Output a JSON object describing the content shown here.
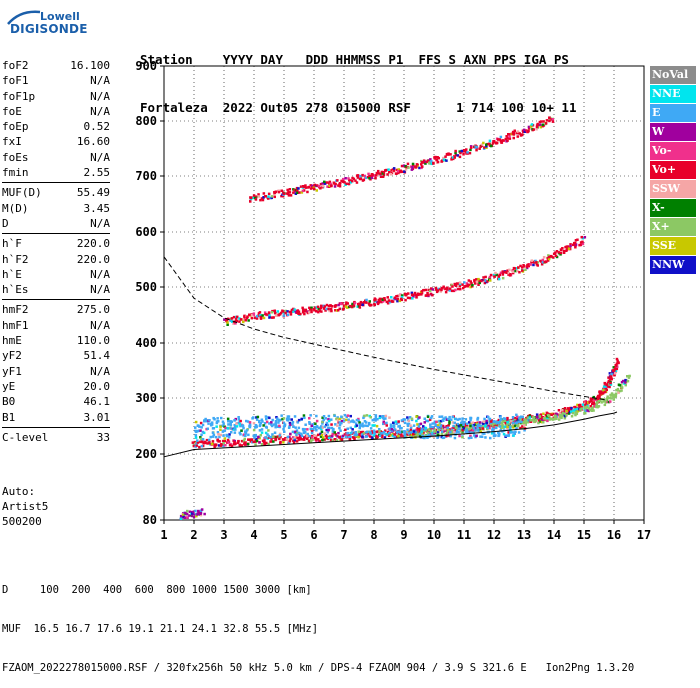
{
  "logo": {
    "line1": "Lowell",
    "line2": "DIGISONDE"
  },
  "header": {
    "line1": "Station    YYYY DAY   DDD HHMMSS P1  FFS S AXN PPS IGA PS",
    "line2": "Fortaleza  2022 Out05 278 015000 RSF      1 714 100 10+ 11"
  },
  "params_groups": [
    [
      {
        "label": "foF2",
        "value": "16.100"
      },
      {
        "label": "foF1",
        "value": "N/A"
      },
      {
        "label": "foF1p",
        "value": "N/A"
      },
      {
        "label": "foE",
        "value": "N/A"
      },
      {
        "label": "foEp",
        "value": "0.52"
      },
      {
        "label": "fxI",
        "value": "16.60"
      },
      {
        "label": "foEs",
        "value": "N/A"
      },
      {
        "label": "fmin",
        "value": "2.55"
      }
    ],
    [
      {
        "label": "MUF(D)",
        "value": "55.49"
      },
      {
        "label": "M(D)",
        "value": "3.45"
      },
      {
        "label": "D",
        "value": "N/A"
      }
    ],
    [
      {
        "label": "h`F",
        "value": "220.0"
      },
      {
        "label": "h`F2",
        "value": "220.0"
      },
      {
        "label": "h`E",
        "value": "N/A"
      },
      {
        "label": "h`Es",
        "value": "N/A"
      }
    ],
    [
      {
        "label": "hmF2",
        "value": "275.0"
      },
      {
        "label": "hmF1",
        "value": "N/A"
      },
      {
        "label": "hmE",
        "value": "110.0"
      },
      {
        "label": "yF2",
        "value": "51.4"
      },
      {
        "label": "yF1",
        "value": "N/A"
      },
      {
        "label": "yE",
        "value": "20.0"
      },
      {
        "label": "B0",
        "value": "46.1"
      },
      {
        "label": "B1",
        "value": "3.01"
      }
    ],
    [
      {
        "label": "C-level",
        "value": "33"
      }
    ]
  ],
  "auto": {
    "line1": "Auto:",
    "line2": "Artist5",
    "line3": "500200"
  },
  "legend": [
    {
      "label": "NoVal",
      "color": "#8c8c8c"
    },
    {
      "label": "NNE",
      "color": "#00e5ee"
    },
    {
      "label": "E",
      "color": "#3fa9f5"
    },
    {
      "label": "W",
      "color": "#a0009e"
    },
    {
      "label": "Vo-",
      "color": "#f0308c"
    },
    {
      "label": "Vo+",
      "color": "#e8002a"
    },
    {
      "label": "SSW",
      "color": "#f5a6a6"
    },
    {
      "label": "X-",
      "color": "#008000"
    },
    {
      "label": "X+",
      "color": "#8cc864"
    },
    {
      "label": "SSE",
      "color": "#c8c800"
    },
    {
      "label": "NNW",
      "color": "#1010c8"
    }
  ],
  "footer": {
    "line1": "D     100  200  400  600  800 1000 1500 3000 [km]",
    "line2": "MUF  16.5 16.7 17.6 19.1 21.1 24.1 32.8 55.5 [MHz]",
    "line3": "FZAOM_2022278015000.RSF / 320fx256h 50 kHz 5.0 km / DPS-4 FZAOM 904 / 3.9 S 321.6 E   Ion2Png 1.3.20"
  },
  "chart_data": {
    "type": "scatter",
    "xlim": [
      1,
      17
    ],
    "ylim": [
      80,
      900
    ],
    "x_ticks": [
      1,
      2,
      3,
      4,
      5,
      6,
      7,
      8,
      9,
      10,
      11,
      12,
      13,
      14,
      15,
      16,
      17
    ],
    "y_ticks": [
      80,
      200,
      300,
      400,
      500,
      600,
      700,
      800,
      900
    ],
    "grid": true,
    "xlabel": "",
    "ylabel": "",
    "traces": [
      {
        "name": "ordinary_1st_hop",
        "color": "#e8002a",
        "x": [
          1.9,
          3,
          4,
          5,
          6,
          7,
          8,
          9,
          10,
          11,
          12,
          13,
          14,
          14.8,
          15.4,
          15.8,
          16.1
        ],
        "y": [
          220,
          222,
          225,
          228,
          230,
          233,
          237,
          240,
          245,
          250,
          257,
          264,
          273,
          285,
          300,
          330,
          370
        ]
      },
      {
        "name": "extraordinary_1st_hop",
        "color": "#8cc864",
        "x": [
          9,
          10,
          11,
          12,
          13,
          14,
          15,
          15.8,
          16.5
        ],
        "y": [
          236,
          241,
          247,
          253,
          260,
          268,
          280,
          300,
          340
        ]
      },
      {
        "name": "ordinary_2nd_hop",
        "color": "#e8002a",
        "x": [
          3,
          4,
          5,
          6,
          7,
          8,
          9,
          10,
          11,
          12,
          13,
          14,
          15
        ],
        "y": [
          440,
          450,
          456,
          462,
          468,
          476,
          484,
          494,
          506,
          520,
          538,
          560,
          590
        ]
      },
      {
        "name": "ordinary_3rd_hop",
        "color": "#e8002a",
        "x": [
          3.8,
          5,
          6,
          7,
          8,
          9,
          10,
          11,
          12,
          13,
          14
        ],
        "y": [
          660,
          672,
          682,
          692,
          704,
          716,
          730,
          746,
          764,
          784,
          808
        ]
      },
      {
        "name": "bottomside_spread",
        "color": "#3fa9f5",
        "x": [
          2,
          3,
          4,
          5,
          6,
          7,
          8,
          9,
          10,
          11,
          12,
          13
        ],
        "y": [
          245,
          248,
          250,
          252,
          252,
          252,
          252,
          251,
          250,
          250,
          250,
          255
        ]
      },
      {
        "name": "low_echoes",
        "color": "#a0009e",
        "x": [
          1.5,
          1.7,
          1.9,
          2.1,
          2.3
        ],
        "y": [
          88,
          90,
          95,
          92,
          96
        ]
      }
    ],
    "profile": {
      "name": "electron_density_profile",
      "x": [
        1,
        2,
        4,
        6,
        8,
        10,
        12,
        13,
        14,
        15,
        15.5,
        16,
        16.1
      ],
      "y": [
        195,
        208,
        214,
        220,
        226,
        232,
        240,
        245,
        252,
        262,
        268,
        273,
        275
      ]
    },
    "muf_curve": {
      "name": "muf_dashed",
      "x": [
        1,
        2,
        3,
        4,
        5,
        6,
        7,
        8,
        9,
        10,
        11,
        12,
        13,
        14,
        15,
        15.8
      ],
      "y": [
        555,
        480,
        445,
        425,
        410,
        398,
        386,
        374,
        363,
        352,
        342,
        332,
        322,
        312,
        303,
        296
      ]
    }
  }
}
